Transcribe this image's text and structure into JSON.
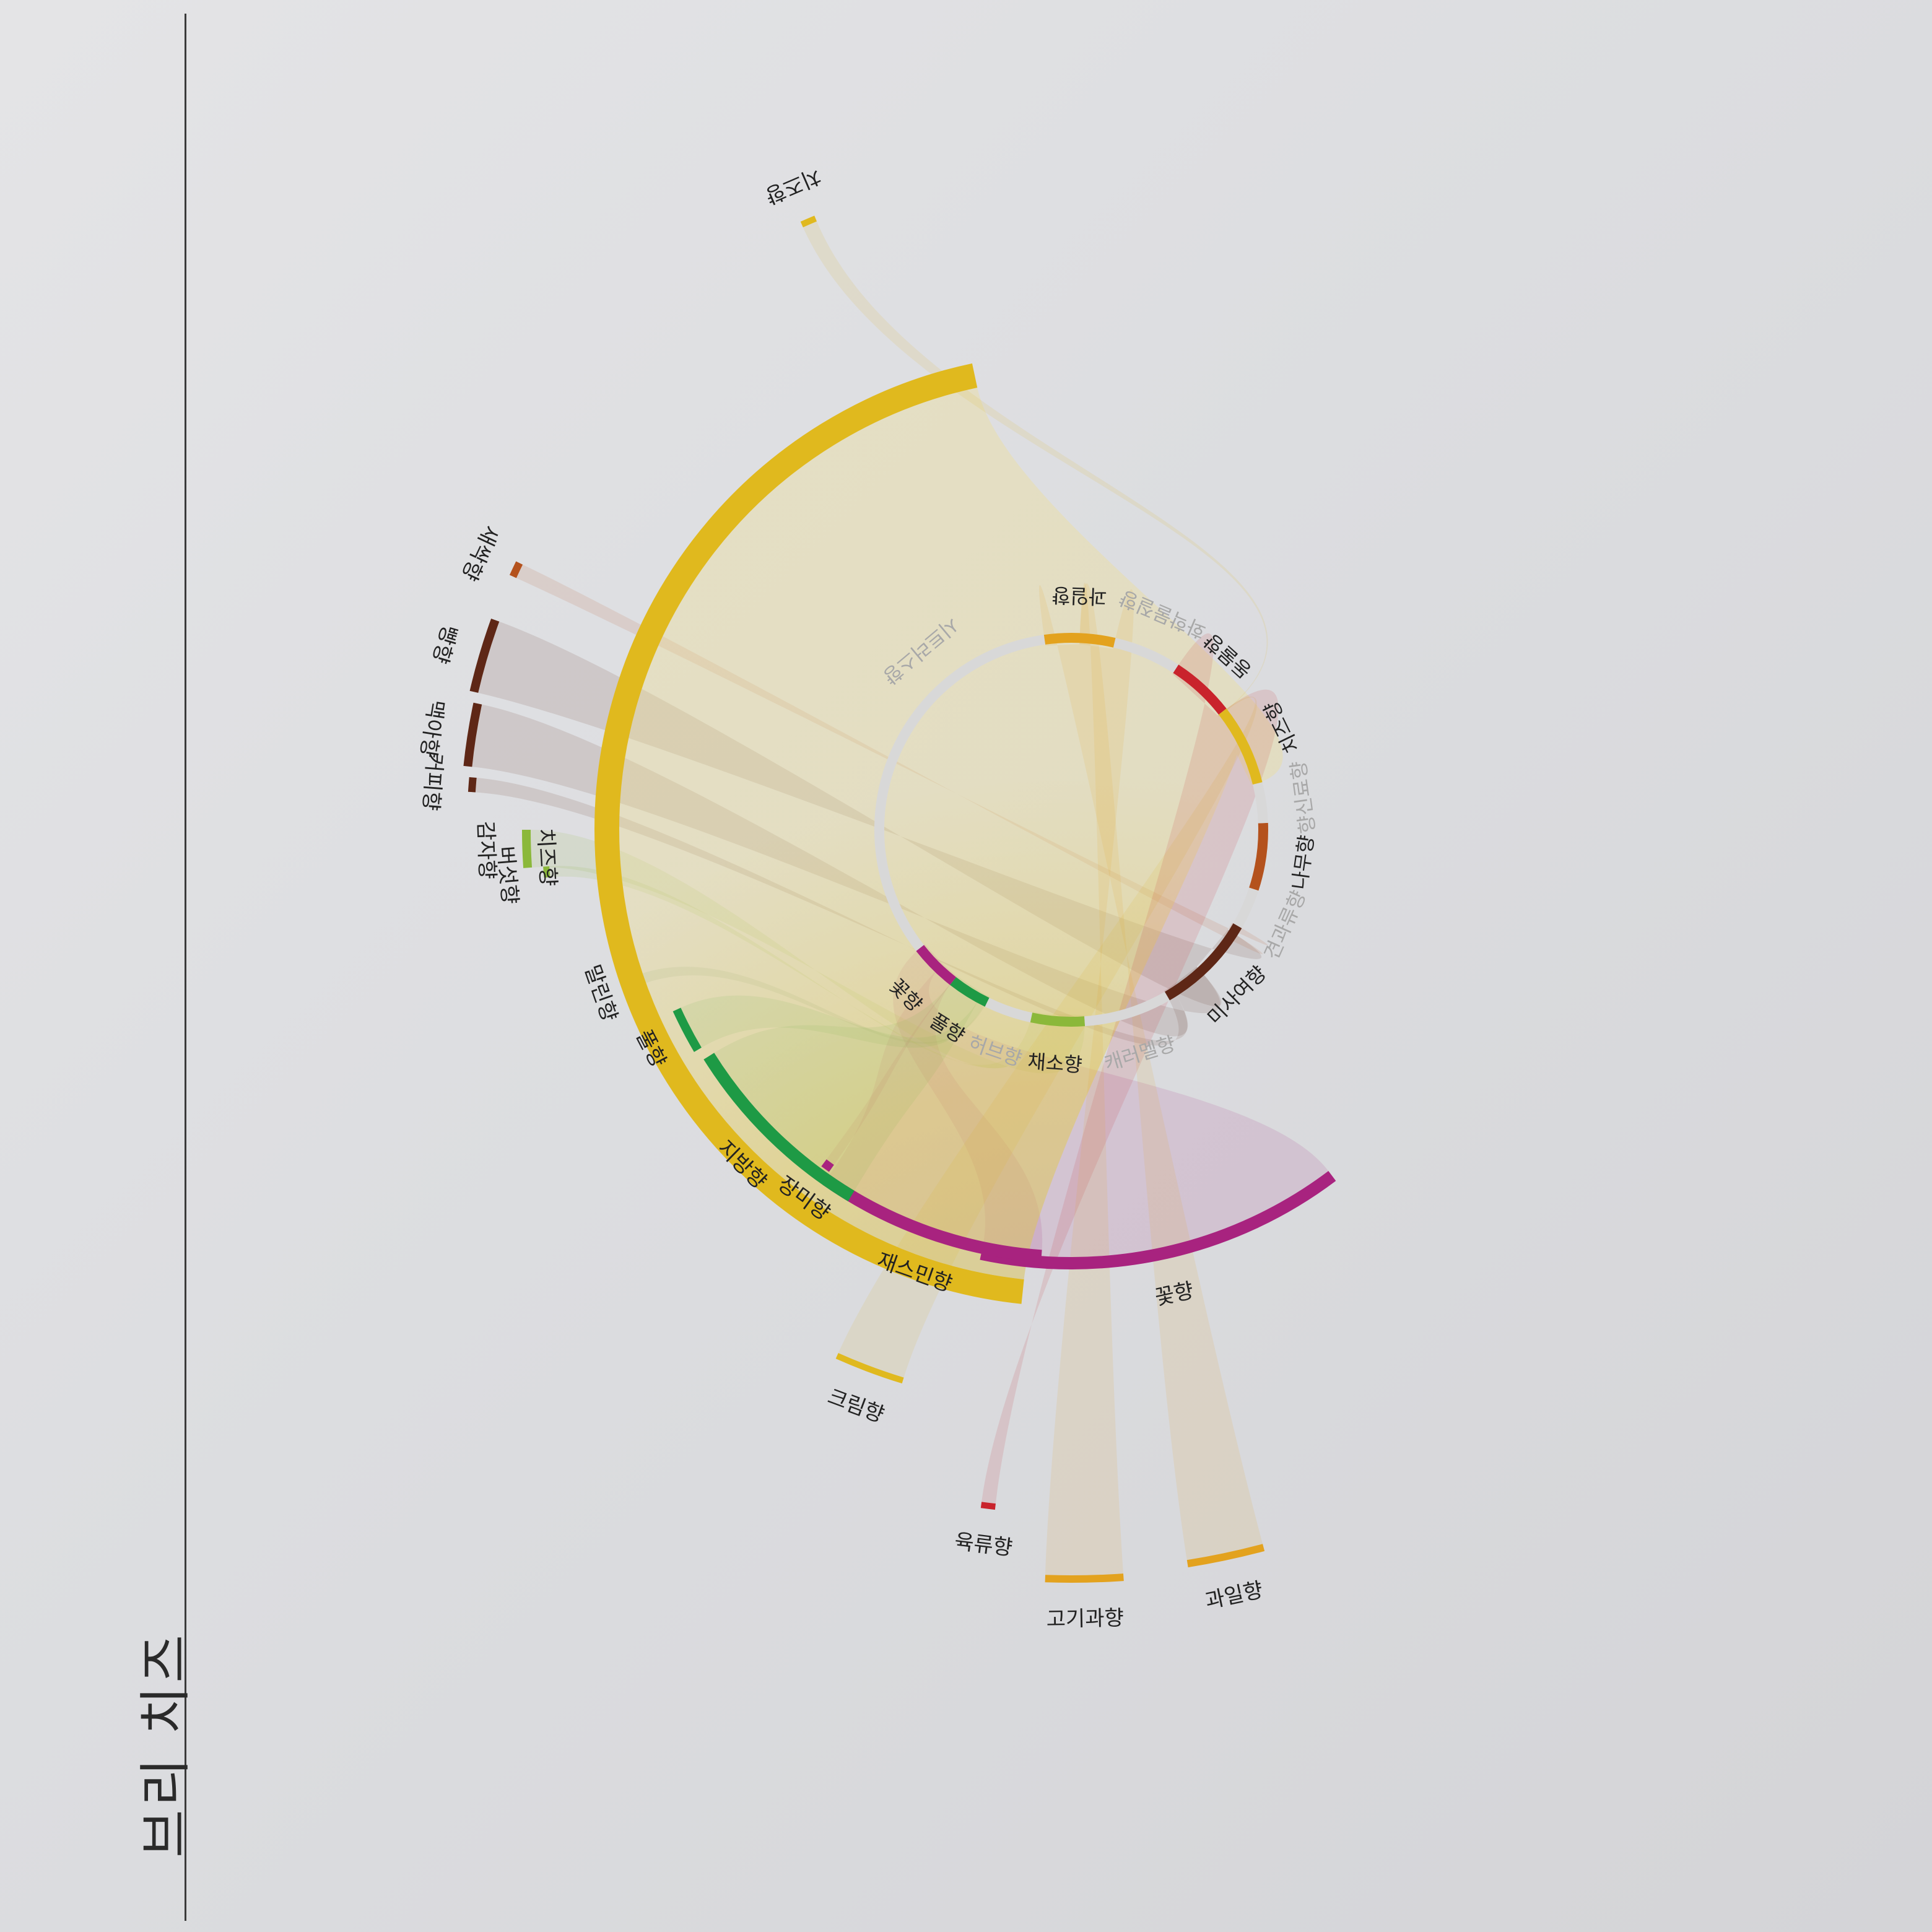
{
  "page": {
    "title": "브리 치즈"
  },
  "chart_data": {
    "type": "chord",
    "title": "브리 치즈",
    "inner_ring": [
      {
        "name": "꽃향",
        "color": "#a8237f",
        "from": -52,
        "to": -38,
        "active": true
      },
      {
        "name": "풀향",
        "color": "#1e9a45",
        "from": -38,
        "to": -26,
        "active": true
      },
      {
        "name": "허브향",
        "color": "#d8d8d8",
        "from": -26,
        "to": -12,
        "active": false
      },
      {
        "name": "채소향",
        "color": "#8bb83a",
        "from": -12,
        "to": 4,
        "active": true
      },
      {
        "name": "캐러멜향",
        "color": "#d8d8d8",
        "from": 4,
        "to": 30,
        "active": false
      },
      {
        "name": "미사여향",
        "color": "#5e2716",
        "from": 30,
        "to": 60,
        "active": true
      },
      {
        "name": "견과류향",
        "color": "#d8d8d8",
        "from": 60,
        "to": 72,
        "active": false
      },
      {
        "name": "나무향",
        "color": "#b4521d",
        "from": 72,
        "to": 92,
        "active": true
      },
      {
        "name": "향신료향",
        "color": "#d8d8d8",
        "from": 92,
        "to": 104,
        "active": false
      },
      {
        "name": "치즈향",
        "color": "#e0b91e",
        "from": 104,
        "to": 128,
        "active": true
      },
      {
        "name": "동물향",
        "color": "#c9232c",
        "from": 128,
        "to": 147,
        "active": true
      },
      {
        "name": "화학물질향",
        "color": "#d8d8d8",
        "from": 147,
        "to": 167,
        "active": false
      },
      {
        "name": "과일향",
        "color": "#e3a21e",
        "from": 167,
        "to": 188,
        "active": true
      },
      {
        "name": "시트러스향",
        "color": "#d8d8d8",
        "from": 188,
        "to": 308,
        "active": false
      }
    ],
    "outer_ring": [
      {
        "name": "꽃향",
        "category": "꽃향",
        "color": "#a8237f",
        "weight": 35
      },
      {
        "name": "재스민향",
        "category": "꽃향",
        "color": "#a8237f",
        "weight": 24
      },
      {
        "name": "장미향",
        "category": "꽃향",
        "color": "#a8237f",
        "weight": 1
      },
      {
        "name": "지방향",
        "category": "풀향",
        "color": "#1e9a45",
        "weight": 26
      },
      {
        "name": "풀향",
        "category": "풀향",
        "color": "#1e9a45",
        "weight": 6
      },
      {
        "name": "말린향",
        "category": "풀향",
        "color": "#5e8e60",
        "weight": 1
      },
      {
        "name": "버섯향",
        "category": "채소향",
        "color": "#8bb83a",
        "weight": 1
      },
      {
        "name": "감자향",
        "category": "채소향",
        "color": "#8bb83a",
        "weight": 4
      },
      {
        "name": "커피향",
        "category": "미사여향",
        "color": "#5e2716",
        "weight": 1
      },
      {
        "name": "맥아향",
        "category": "미사여향",
        "color": "#5e2716",
        "weight": 4
      },
      {
        "name": "빵향",
        "category": "미사여향",
        "color": "#5e2716",
        "weight": 6
      },
      {
        "name": "새싹향",
        "category": "미사여향",
        "color": "#b4521d",
        "weight": 1
      },
      {
        "name": "치즈향",
        "category": "치즈향",
        "color": "#e0b91e",
        "weight": 120
      },
      {
        "name": "치즈향2",
        "category": "치즈향",
        "color": "#e0b91e",
        "weight": 1
      },
      {
        "name": "크림향",
        "category": "치즈향",
        "color": "#e0b91e",
        "weight": 2
      },
      {
        "name": "육류향",
        "category": "동물향",
        "color": "#c9232c",
        "weight": 1
      },
      {
        "name": "고기과향",
        "category": "과일향",
        "color": "#e3a21e",
        "weight": 5
      },
      {
        "name": "과일향",
        "category": "과일향",
        "color": "#e3a21e",
        "weight": 5
      }
    ]
  }
}
